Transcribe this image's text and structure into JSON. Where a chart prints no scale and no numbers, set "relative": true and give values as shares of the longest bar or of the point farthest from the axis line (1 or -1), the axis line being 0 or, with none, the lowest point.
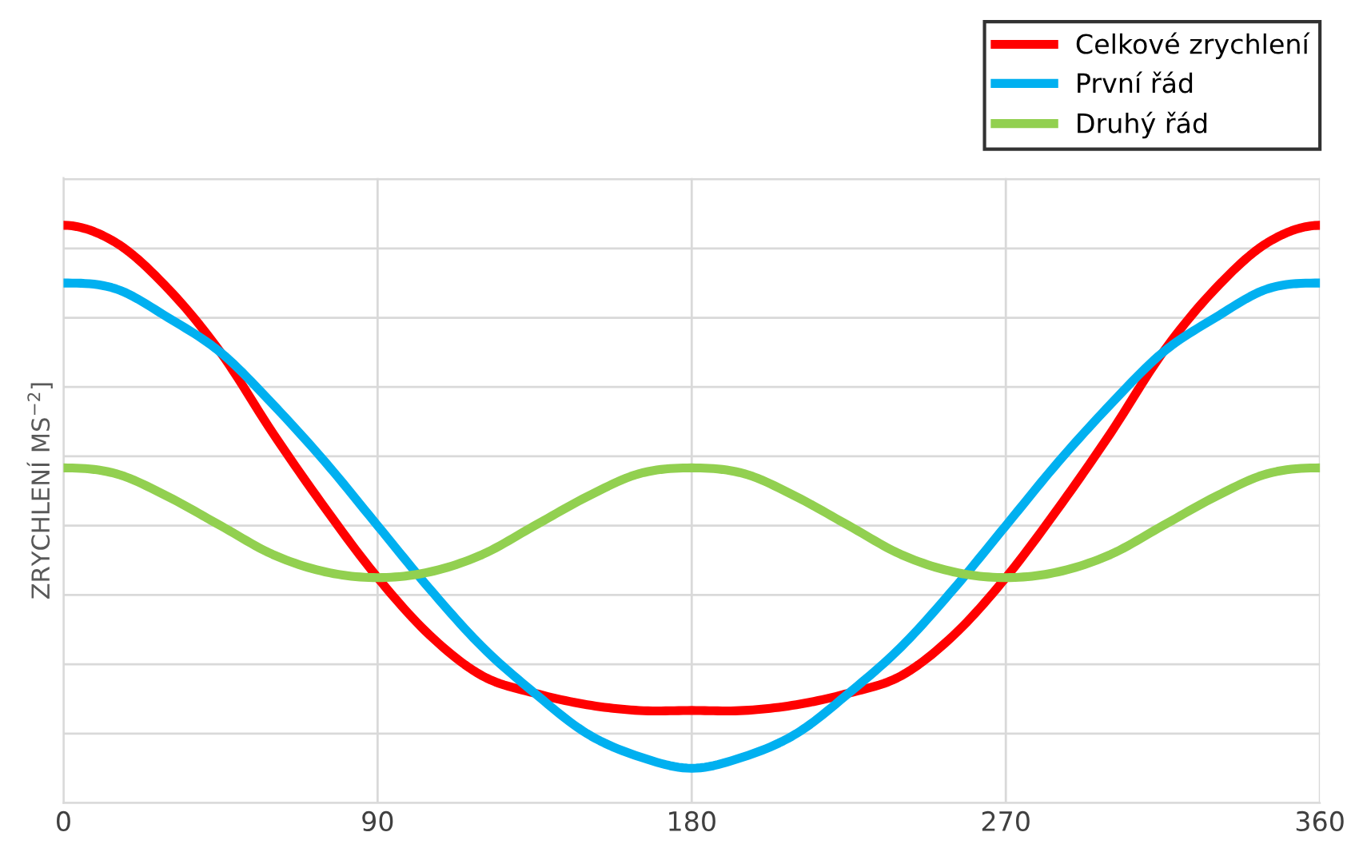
{
  "chart_data": {
    "type": "line",
    "relative": true,
    "ylabel": "ZRYCHLENÍ MS$^{−2}$]",
    "x": [
      0,
      15,
      30,
      45,
      60,
      75,
      90,
      105,
      120,
      135,
      150,
      165,
      180,
      195,
      210,
      225,
      240,
      255,
      270,
      285,
      300,
      315,
      330,
      345,
      360
    ],
    "xlim": [
      0,
      360
    ],
    "xticks": [
      0,
      90,
      180,
      270,
      360
    ],
    "tick_labels": "x",
    "grid": true,
    "legend": "top right",
    "line_style": "solid",
    "marker": "none",
    "series": [
      {
        "name": "Celkové zrychlení",
        "color": "#ff0000",
        "values": [
          1.0,
          0.97,
          0.89,
          0.78,
          0.64,
          0.51,
          0.39,
          0.29,
          0.22,
          0.19,
          0.17,
          0.16,
          0.16,
          0.16,
          0.17,
          0.19,
          0.22,
          0.29,
          0.39,
          0.51,
          0.64,
          0.78,
          0.89,
          0.97,
          1.0
        ]
      },
      {
        "name": "První řád",
        "color": "#00b0f0",
        "values": [
          0.9,
          0.89,
          0.84,
          0.78,
          0.69,
          0.59,
          0.48,
          0.37,
          0.27,
          0.19,
          0.12,
          0.08,
          0.06,
          0.08,
          0.12,
          0.19,
          0.27,
          0.37,
          0.48,
          0.59,
          0.69,
          0.78,
          0.84,
          0.89,
          0.9
        ]
      },
      {
        "name": "Druhý řád",
        "color": "#92d050",
        "values": [
          0.58,
          0.57,
          0.53,
          0.48,
          0.43,
          0.4,
          0.39,
          0.4,
          0.43,
          0.48,
          0.53,
          0.57,
          0.58,
          0.57,
          0.53,
          0.48,
          0.43,
          0.4,
          0.39,
          0.4,
          0.43,
          0.48,
          0.53,
          0.57,
          0.58
        ]
      }
    ]
  }
}
